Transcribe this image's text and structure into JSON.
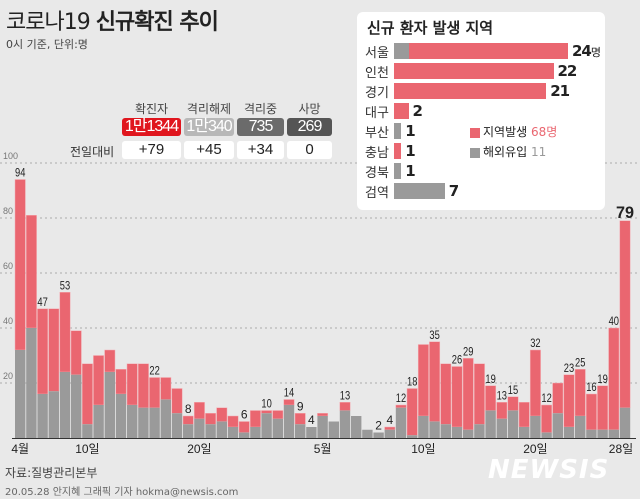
{
  "header": {
    "title_light": "코로나19",
    "title_bold": "신규확진 추이",
    "subtitle": "0시 기준, 단위:명"
  },
  "stats": {
    "diff_label": "전일대비",
    "columns": [
      {
        "label": "확진자",
        "value": "1만1344",
        "diff": "+79",
        "color": "#e0161e"
      },
      {
        "label": "격리해제",
        "value": "1만340",
        "diff": "+45",
        "color": "#b8b8b8"
      },
      {
        "label": "격리중",
        "value": "735",
        "diff": "+34",
        "color": "#6b6b6b"
      },
      {
        "label": "사망",
        "value": "269",
        "diff": "0",
        "color": "#555555"
      }
    ]
  },
  "inset": {
    "title": "신규 환자 발생 지역",
    "unit": "명",
    "regions": [
      {
        "name": "서울",
        "local": 22,
        "imported": 2,
        "total": "24"
      },
      {
        "name": "인천",
        "local": 22,
        "imported": 0,
        "total": "22"
      },
      {
        "name": "경기",
        "local": 21,
        "imported": 0,
        "total": "21"
      },
      {
        "name": "대구",
        "local": 2,
        "imported": 0,
        "total": "2"
      },
      {
        "name": "부산",
        "local": 0,
        "imported": 1,
        "total": "1"
      },
      {
        "name": "충남",
        "local": 1,
        "imported": 0,
        "total": "1"
      },
      {
        "name": "경북",
        "local": 0,
        "imported": 1,
        "total": "1"
      },
      {
        "name": "검역",
        "local": 0,
        "imported": 7,
        "total": "7"
      }
    ],
    "legend": [
      {
        "label": "지역발생",
        "value": "68명",
        "color": "#ea6670"
      },
      {
        "label": "해외유입",
        "value": "11",
        "color": "#9a9a9a"
      }
    ]
  },
  "chart_data": {
    "type": "bar",
    "stacked": true,
    "colors": {
      "local": "#ea6670",
      "imported": "#9a9a9a"
    },
    "ylim": [
      0,
      100
    ],
    "yticks": [
      "20",
      "40",
      "60",
      "80",
      "100"
    ],
    "grid": true,
    "x_tick_labels": [
      {
        "index": 0,
        "label": "4월"
      },
      {
        "index": 6,
        "label": "10일"
      },
      {
        "index": 16,
        "label": "20일"
      },
      {
        "index": 27,
        "label": "5월"
      },
      {
        "index": 36,
        "label": "10일"
      },
      {
        "index": 46,
        "label": "20일"
      },
      {
        "index": 54,
        "label": "28일"
      }
    ],
    "dates": [
      "4/4",
      "4/5",
      "4/6",
      "4/7",
      "4/8",
      "4/9",
      "4/10",
      "4/11",
      "4/12",
      "4/13",
      "4/14",
      "4/15",
      "4/16",
      "4/17",
      "4/18",
      "4/19",
      "4/20",
      "4/21",
      "4/22",
      "4/23",
      "4/24",
      "4/25",
      "4/26",
      "4/27",
      "4/28",
      "4/29",
      "4/30",
      "5/1",
      "5/2",
      "5/3",
      "5/4",
      "5/5",
      "5/6",
      "5/7",
      "5/8",
      "5/9",
      "5/10",
      "5/11",
      "5/12",
      "5/13",
      "5/14",
      "5/15",
      "5/16",
      "5/17",
      "5/18",
      "5/19",
      "5/20",
      "5/21",
      "5/22",
      "5/23",
      "5/24",
      "5/25",
      "5/26",
      "5/27",
      "5/28"
    ],
    "totals": [
      94,
      81,
      47,
      47,
      53,
      39,
      27,
      30,
      32,
      25,
      27,
      27,
      22,
      22,
      18,
      8,
      13,
      9,
      11,
      8,
      6,
      10,
      10,
      10,
      14,
      9,
      4,
      9,
      6,
      13,
      8,
      3,
      2,
      4,
      12,
      18,
      34,
      35,
      27,
      26,
      29,
      27,
      19,
      13,
      15,
      13,
      32,
      12,
      20,
      23,
      25,
      16,
      19,
      40,
      79
    ],
    "imported": [
      32,
      40,
      16,
      17,
      24,
      23,
      5,
      12,
      24,
      16,
      12,
      11,
      11,
      14,
      9,
      5,
      7,
      5,
      6,
      4,
      2,
      4,
      9,
      7,
      12,
      5,
      4,
      8,
      6,
      10,
      8,
      3,
      2,
      3,
      11,
      1,
      8,
      6,
      5,
      4,
      3,
      5,
      10,
      7,
      10,
      4,
      8,
      2,
      9,
      4,
      8,
      3,
      3,
      3,
      11
    ],
    "labeled": [
      0,
      2,
      4,
      12,
      15,
      20,
      22,
      24,
      25,
      26,
      29,
      32,
      33,
      34,
      35,
      37,
      39,
      40,
      42,
      43,
      44,
      46,
      47,
      49,
      50,
      51,
      52,
      53,
      54
    ]
  },
  "footer": {
    "source": "자료:질병관리본부",
    "credit": "20.05.28 안지혜 그래픽 기자 hokma@newsis.com",
    "watermark": "NEWSIS"
  }
}
